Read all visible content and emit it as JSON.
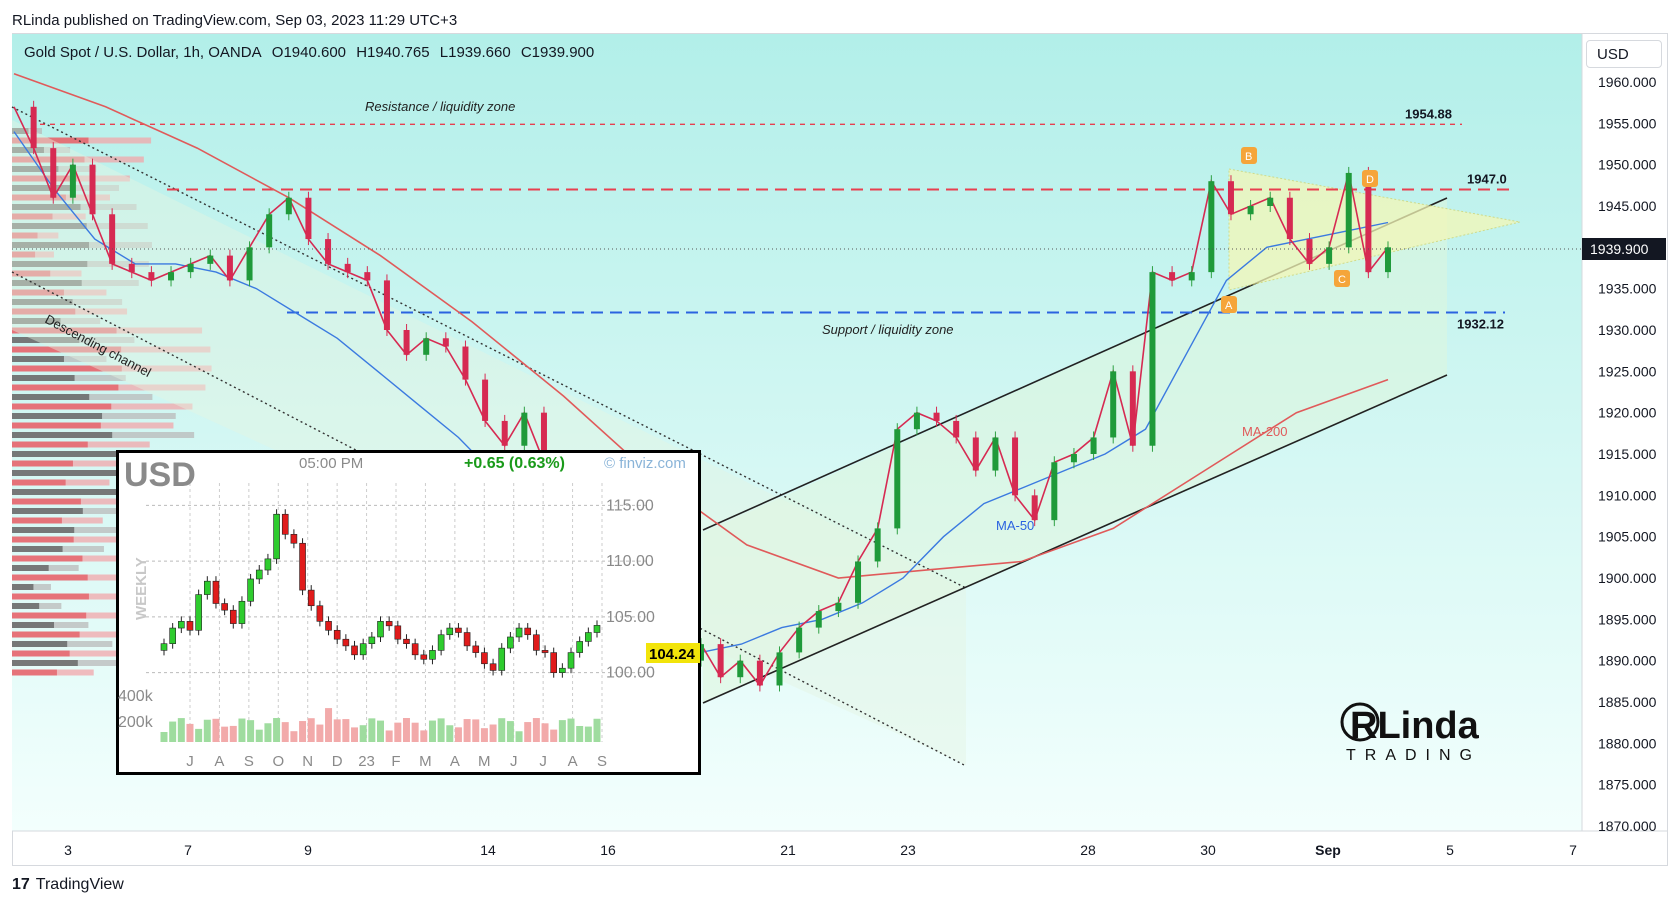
{
  "caption": "RLinda published on TradingView.com, Sep 03, 2023 11:29 UTC+3",
  "brand": {
    "name": "TradingView"
  },
  "legend": {
    "symbol": "Gold Spot / U.S. Dollar, 1h, OANDA",
    "open": "O1940.600",
    "high": "H1940.765",
    "low": "L1939.660",
    "close": "C1939.900"
  },
  "currency_button": "USD",
  "chart_data": [
    {
      "type": "line",
      "title": "Gold Spot / U.S. Dollar, 1h, OANDA",
      "ylim": [
        1867,
        1963
      ],
      "y_ticks": [
        "1960.000",
        "1955.000",
        "1950.000",
        "1945.000",
        "1940.000",
        "1935.000",
        "1930.000",
        "1925.000",
        "1920.000",
        "1915.000",
        "1910.000",
        "1905.000",
        "1900.000",
        "1895.000",
        "1890.000",
        "1885.000",
        "1880.000",
        "1875.000",
        "1870.000"
      ],
      "x_ticks": [
        "3",
        "7",
        "9",
        "14",
        "16",
        "21",
        "23",
        "28",
        "30",
        "Sep",
        "5",
        "7"
      ],
      "last_price": "1939.900",
      "levels": [
        {
          "label": "1954.88",
          "value": 1954.88,
          "color": "#e83f4f"
        },
        {
          "label": "1947.0",
          "value": 1947.0,
          "color": "#e83f4f"
        },
        {
          "label": "1932.12",
          "value": 1932.12,
          "color": "#2b63e0"
        }
      ],
      "annotations": [
        "Resistance / liquidity zone",
        "Support / liquidity zone",
        "Descending channel",
        "MA-50",
        "MA-200"
      ],
      "pattern_points": [
        "A",
        "B",
        "C",
        "D"
      ],
      "price_path": [
        1957,
        1952,
        1946,
        1950,
        1944,
        1938,
        1937,
        1936,
        1937,
        1938,
        1939,
        1936,
        1940,
        1944,
        1946,
        1941,
        1938,
        1937,
        1936,
        1930,
        1927,
        1929,
        1928,
        1924,
        1919,
        1916,
        1920,
        1914,
        1906,
        1910,
        1913,
        1911,
        1900,
        1895,
        1890,
        1892,
        1888,
        1890,
        1887,
        1891,
        1894,
        1896,
        1897,
        1902,
        1906,
        1918,
        1920,
        1919,
        1917,
        1913,
        1917,
        1910,
        1907,
        1914,
        1915,
        1917,
        1925,
        1916,
        1937,
        1936,
        1937,
        1948,
        1944,
        1945,
        1946,
        1941,
        1938,
        1940,
        1949,
        1937,
        1940
      ],
      "ma50": [
        1954,
        1947,
        1941,
        1938,
        1938,
        1937,
        1935,
        1932,
        1929,
        1925,
        1921,
        1917,
        1912,
        1905,
        1898,
        1894,
        1892,
        1891,
        1892,
        1894,
        1895,
        1897,
        1900,
        1905,
        1909,
        1911,
        1913,
        1915,
        1918,
        1927,
        1936,
        1940,
        1941,
        1942,
        1943
      ],
      "ma200": [
        1961,
        1957,
        1952,
        1946,
        1939,
        1931,
        1922,
        1912,
        1904,
        1900,
        1901,
        1902,
        1906,
        1913,
        1920,
        1924
      ]
    },
    {
      "type": "bar",
      "title": "USD",
      "subtitle": "WEEKLY",
      "time": "05:00 PM",
      "change": "+0.65 (0.63%)",
      "source": "© finviz.com",
      "last_value": "104.24",
      "ylim": [
        98,
        117
      ],
      "y_ticks": [
        "115.00",
        "110.00",
        "105.00",
        "100.00"
      ],
      "volume_ticks": [
        "400k",
        "200k"
      ],
      "x_ticks": [
        "J",
        "A",
        "S",
        "O",
        "N",
        "D",
        "23",
        "F",
        "M",
        "A",
        "M",
        "J",
        "J",
        "A",
        "S"
      ],
      "closes": [
        102.6,
        104.0,
        104.6,
        103.8,
        107.0,
        108.2,
        106.2,
        105.6,
        104.4,
        106.4,
        108.4,
        109.2,
        110.2,
        114.2,
        112.4,
        111.6,
        107.4,
        106.0,
        104.6,
        103.8,
        103.0,
        102.4,
        101.6,
        102.6,
        103.2,
        104.6,
        104.2,
        103.0,
        102.6,
        101.6,
        101.2,
        102.0,
        103.4,
        104.0,
        103.6,
        102.4,
        101.8,
        100.8,
        100.2,
        102.2,
        103.2,
        104.0,
        103.4,
        102.0,
        101.8,
        100.0,
        100.4,
        101.8,
        102.8,
        103.6,
        104.24
      ]
    }
  ],
  "inset_panel": {
    "title": "USD"
  },
  "logo": {
    "line1": "RLinda",
    "line2": "TRADING"
  }
}
